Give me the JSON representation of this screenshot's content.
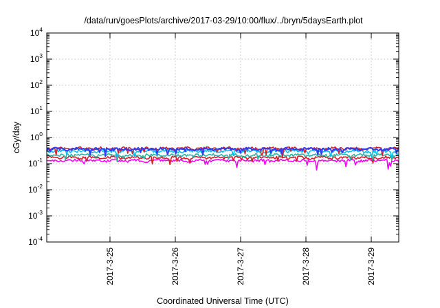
{
  "chart_data": {
    "type": "line",
    "title": "/data/run/goesPlots/archive/2017-03-29/10:00/flux/../bryn/5daysEarth.plot",
    "xlabel": "Coordinated Universal Time (UTC)",
    "ylabel": "cGy/day",
    "xscale": "time",
    "yscale": "log",
    "x_range": [
      "2017-03-24T00:46",
      "2017-03-29T10:06"
    ],
    "ylim": [
      0.0001,
      10000
    ],
    "y_ticks": [
      {
        "value": 0.0001,
        "base": "10",
        "exp": "-4"
      },
      {
        "value": 0.001,
        "base": "10",
        "exp": "-3"
      },
      {
        "value": 0.01,
        "base": "10",
        "exp": "-2"
      },
      {
        "value": 0.1,
        "base": "10",
        "exp": "-1"
      },
      {
        "value": 1,
        "base": "10",
        "exp": "0"
      },
      {
        "value": 10,
        "base": "10",
        "exp": "1"
      },
      {
        "value": 100,
        "base": "10",
        "exp": "2"
      },
      {
        "value": 1000,
        "base": "10",
        "exp": "3"
      },
      {
        "value": 10000,
        "base": "10",
        "exp": "4"
      }
    ],
    "x_ticks": [
      {
        "value": "2017-03-25T00:00",
        "label": "2017-3-25"
      },
      {
        "value": "2017-03-26T00:00",
        "label": "2017-3-26"
      },
      {
        "value": "2017-03-27T00:00",
        "label": "2017-3-27"
      },
      {
        "value": "2017-03-28T00:00",
        "label": "2017-3-28"
      },
      {
        "value": "2017-03-29T00:00",
        "label": "2017-3-29"
      }
    ],
    "grid": true,
    "legend": "none",
    "series": [
      {
        "color": "#ff00ff",
        "level": 0.13
      },
      {
        "color": "#d0202a",
        "level": 0.17
      },
      {
        "color": "#2db3a6",
        "level": 0.21
      },
      {
        "color": "#00c0f0",
        "level": 0.3
      },
      {
        "color": "#d0202a",
        "level": 0.38
      },
      {
        "color": "#2f3cf0",
        "level": 0.36
      }
    ]
  }
}
